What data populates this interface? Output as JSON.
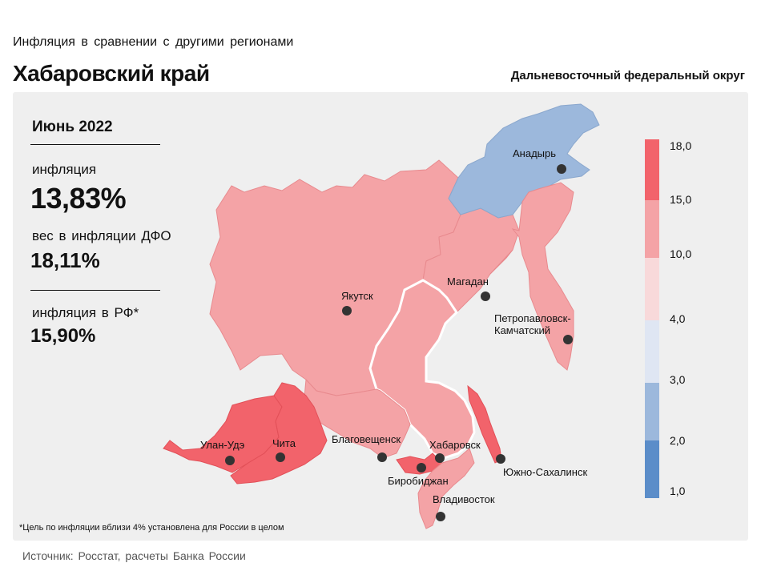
{
  "header": {
    "subtitle": "Инфляция  в сравнении  с другими  регионами",
    "title": "Хабаровский край",
    "district": "Дальневосточный федеральный округ"
  },
  "stats": {
    "period": "Июнь 2022",
    "inflation_label": "инфляция",
    "inflation_value": "13,83%",
    "weight_label": "вес в инфляции ДФО",
    "weight_value": "18,11%",
    "rf_label": "инфляция  в РФ*",
    "rf_value": "15,90%"
  },
  "footnote": "*Цель по инфляции вблизи 4% установлена для России в целом",
  "source": "Источник: Росстат, расчеты  Банка России",
  "colors": {
    "panel": "#efefef",
    "class_15_18": "#f2636b",
    "class_10_15": "#f4a3a6",
    "class_4_10": "#f8d9da",
    "class_3_4": "#dfe6f3",
    "class_2_3": "#9cb8dc",
    "class_1_2": "#5b8dc9",
    "highlight_border": "#ffffff",
    "city_marker": "#333333"
  },
  "legend": {
    "ticks": [
      "18,0",
      "15,0",
      "10,0",
      "4,0",
      "3,0",
      "2,0",
      "1,0"
    ]
  },
  "regions": [
    {
      "name": "Чукотский АО",
      "class": "2–3"
    },
    {
      "name": "Республика Саха (Якутия)",
      "class": "10–15"
    },
    {
      "name": "Магаданская область",
      "class": "10–15"
    },
    {
      "name": "Камчатский край",
      "class": "10–15"
    },
    {
      "name": "Хабаровский край",
      "class": "10–15",
      "highlighted": true
    },
    {
      "name": "Амурская область",
      "class": "10–15"
    },
    {
      "name": "Еврейская АО",
      "class": "15–18"
    },
    {
      "name": "Приморский край",
      "class": "10–15"
    },
    {
      "name": "Сахалинская область",
      "class": "15–18"
    },
    {
      "name": "Республика Бурятия",
      "class": "15–18"
    },
    {
      "name": "Забайкальский край",
      "class": "15–18"
    }
  ],
  "cities": {
    "anadyr": "Анадырь",
    "yakutsk": "Якутск",
    "magadan": "Магадан",
    "petropavlovsk": "Петропавловск-",
    "petropavlovsk2": "Камчатский",
    "ulan_ude": "Улан-Удэ",
    "chita": "Чита",
    "blagoveshchensk": "Благовещенск",
    "khabarovsk": "Хабаровск",
    "birobidzhan": "Биробиджан",
    "yuzhno": "Южно-Сахалинск",
    "vladivostok": "Владивосток"
  }
}
